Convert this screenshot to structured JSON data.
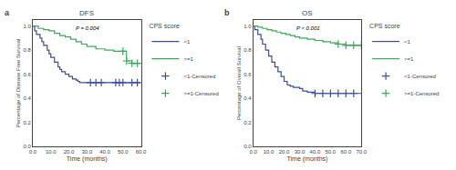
{
  "chart_data": [
    {
      "type": "line",
      "title": "DFS",
      "annotations": [
        "a",
        "P = 0.004"
      ],
      "xlabel": "Time (months)",
      "ylabel": "Percentage of Disease Free Survival",
      "xlim": [
        0,
        60
      ],
      "ylim": [
        0.0,
        1.05
      ],
      "xticks": [
        {
          "value": 0,
          "label": "0.0"
        },
        {
          "value": 10,
          "label": "10.0"
        },
        {
          "value": 20,
          "label": "20.0"
        },
        {
          "value": 30,
          "label": "30.0"
        },
        {
          "value": 40,
          "label": "40.0"
        },
        {
          "value": 50,
          "label": "50.0"
        },
        {
          "value": 60,
          "label": "60.0"
        }
      ],
      "yticks": [
        {
          "value": 0,
          "label": "0.0"
        },
        0.2,
        0.4,
        0.6,
        0.8,
        {
          "value": 1,
          "label": "1.0"
        }
      ],
      "grid": false,
      "legend": "right",
      "legend_title": "CPS score",
      "series": [
        {
          "name": "<1",
          "type": "step",
          "color": "#3b4fa0",
          "x": [
            0,
            1,
            2,
            4,
            5,
            6,
            8,
            9,
            10,
            12,
            14,
            15,
            16,
            18,
            20,
            22,
            24,
            25,
            26,
            28,
            30,
            32,
            60
          ],
          "values": [
            1.0,
            0.96,
            0.93,
            0.9,
            0.87,
            0.84,
            0.8,
            0.77,
            0.74,
            0.7,
            0.66,
            0.64,
            0.62,
            0.6,
            0.58,
            0.56,
            0.55,
            0.54,
            0.53,
            0.53,
            0.53,
            0.53,
            0.53
          ]
        },
        {
          "name": ">=1",
          "type": "step",
          "color": "#3aaa5a",
          "x": [
            0,
            3,
            6,
            9,
            12,
            15,
            18,
            21,
            24,
            27,
            30,
            35,
            40,
            45,
            50,
            52,
            55,
            58,
            60
          ],
          "values": [
            1.0,
            0.98,
            0.97,
            0.96,
            0.94,
            0.92,
            0.91,
            0.89,
            0.87,
            0.85,
            0.83,
            0.81,
            0.8,
            0.79,
            0.79,
            0.71,
            0.69,
            0.69,
            0.69
          ]
        },
        {
          "name": "<1-Censored",
          "type": "scatter",
          "marker": "plus",
          "color": "#3b4fa0",
          "x": [
            32,
            35,
            38,
            46,
            48,
            50,
            55,
            58
          ],
          "values": [
            0.53,
            0.53,
            0.53,
            0.53,
            0.53,
            0.53,
            0.53,
            0.53
          ]
        },
        {
          "name": ">=1-Censored",
          "type": "scatter",
          "marker": "plus",
          "color": "#3aaa5a",
          "x": [
            50,
            52,
            55,
            58
          ],
          "values": [
            0.79,
            0.71,
            0.69,
            0.69
          ]
        }
      ]
    },
    {
      "type": "line",
      "title": "OS",
      "annotations": [
        "b",
        "P < 0.001"
      ],
      "xlabel": "Time (months)",
      "ylabel": "Percentage of Overall Survival",
      "xlim": [
        0,
        70
      ],
      "ylim": [
        0.0,
        1.05
      ],
      "xticks": [
        {
          "value": 0,
          "label": "0.0"
        },
        {
          "value": 10,
          "label": "10.0"
        },
        {
          "value": 20,
          "label": "20.0"
        },
        {
          "value": 30,
          "label": "30.0"
        },
        {
          "value": 40,
          "label": "40.0"
        },
        {
          "value": 50,
          "label": "50.0"
        },
        {
          "value": 60,
          "label": "60.0"
        },
        {
          "value": 70,
          "label": "70.0"
        }
      ],
      "yticks": [
        {
          "value": 0,
          "label": "0.0"
        },
        0.2,
        0.4,
        0.6,
        0.8,
        {
          "value": 1,
          "label": "1.0"
        }
      ],
      "grid": false,
      "legend": "right",
      "legend_title": "CPS score",
      "series": [
        {
          "name": "<1",
          "type": "step",
          "color": "#3b4fa0",
          "x": [
            0,
            1,
            3,
            5,
            6,
            8,
            10,
            12,
            14,
            16,
            18,
            20,
            22,
            24,
            26,
            28,
            30,
            32,
            35,
            40,
            45,
            50,
            70
          ],
          "values": [
            1.0,
            0.97,
            0.93,
            0.89,
            0.85,
            0.8,
            0.75,
            0.7,
            0.66,
            0.62,
            0.58,
            0.54,
            0.51,
            0.5,
            0.49,
            0.49,
            0.48,
            0.46,
            0.45,
            0.44,
            0.44,
            0.44,
            0.44
          ]
        },
        {
          "name": ">=1",
          "type": "step",
          "color": "#3aaa5a",
          "x": [
            0,
            3,
            6,
            9,
            12,
            15,
            18,
            21,
            24,
            27,
            30,
            35,
            40,
            45,
            50,
            55,
            60,
            65,
            70
          ],
          "values": [
            1.0,
            0.99,
            0.98,
            0.97,
            0.96,
            0.95,
            0.94,
            0.93,
            0.92,
            0.91,
            0.9,
            0.89,
            0.88,
            0.87,
            0.86,
            0.85,
            0.84,
            0.84,
            0.84
          ]
        },
        {
          "name": "<1-Censored",
          "type": "scatter",
          "marker": "plus",
          "color": "#3b4fa0",
          "x": [
            40,
            45,
            50,
            55,
            60,
            65
          ],
          "values": [
            0.44,
            0.44,
            0.44,
            0.44,
            0.44,
            0.44
          ]
        },
        {
          "name": ">=1-Censored",
          "type": "scatter",
          "marker": "plus",
          "color": "#3aaa5a",
          "x": [
            55,
            60,
            65,
            70
          ],
          "values": [
            0.85,
            0.84,
            0.84,
            0.84
          ]
        }
      ]
    }
  ]
}
